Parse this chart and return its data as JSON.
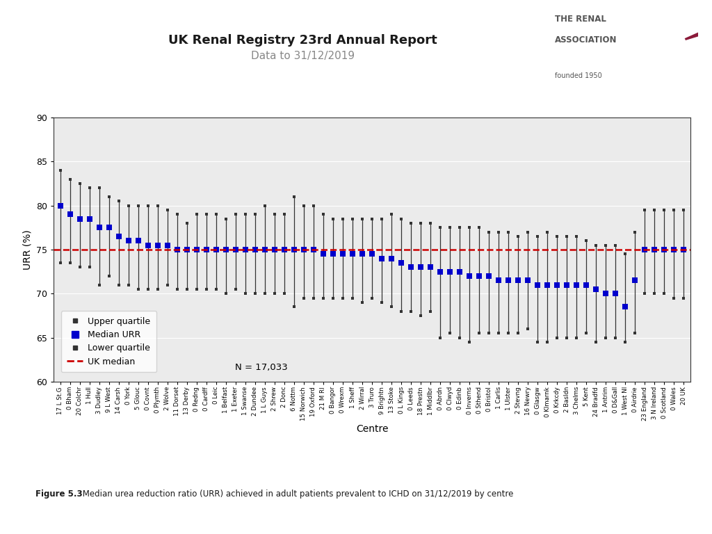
{
  "title": "UK Renal Registry 23rd Annual Report",
  "subtitle": "Data to 31/12/2019",
  "xlabel": "Centre",
  "ylabel": "URR (%)",
  "uk_median": 75.0,
  "n_label": "N = 17,033",
  "ylim": [
    60,
    90
  ],
  "yticks": [
    60,
    65,
    70,
    75,
    80,
    85,
    90
  ],
  "figure_caption": "Figure 5.3 Median urea reduction ratio (URR) achieved in adult patients prevalent to ICHD on 31/12/2019 by centre",
  "background_color": "#ebebeb",
  "centres": [
    "17 L St.G",
    "0 Bham",
    "20 Colchr",
    "1 Hull",
    "3 Dudley",
    "9 L West",
    "14 Carsh",
    "0 York",
    "5 Glouc",
    "0 Covnt",
    "0 Plymth",
    "2 Wolve",
    "11 Dorset",
    "13 Derby",
    "0 Redng",
    "0 Cardff",
    "0 Leic",
    "1 Belfast",
    "1 Exeter",
    "1 Swanse",
    "2 Dundee",
    "1 L Guys",
    "2 Shrew",
    "2 Donc",
    "6 Nottm",
    "15 Norwich",
    "19 Oxford",
    "21 M RI",
    "0 Bangor",
    "0 Wrexm",
    "1 Sheff",
    "2 Wirral",
    "3 Truro",
    "9 Brightn",
    "13 Stoke",
    "0 L Kings",
    "0 Leeds",
    "18 Prestn",
    "1 Middlbr",
    "0 Abrdn",
    "0 Clwyd",
    "0 Edinb",
    "0 Inverns",
    "0 Sthend",
    "0 Bristol",
    "1 Carlis",
    "1 Ulster",
    "2 Stevng",
    "16 Newry",
    "0 Glasgw",
    "0 Klmarnk",
    "0 Krkcdy",
    "2 Basldn",
    "3 Chelms",
    "5 Kent",
    "24 Bradfd",
    "1 Antrim",
    "0 D&Gall",
    "1 West NI",
    "0 Airdrie",
    "23 England",
    "3 N Ireland",
    "0 Scotland",
    "0 Wales",
    "20 UK"
  ],
  "medians": [
    80.0,
    79.0,
    78.5,
    78.5,
    77.5,
    77.5,
    76.5,
    76.0,
    76.0,
    75.5,
    75.5,
    75.5,
    75.0,
    75.0,
    75.0,
    75.0,
    75.0,
    75.0,
    75.0,
    75.0,
    75.0,
    75.0,
    75.0,
    75.0,
    75.0,
    75.0,
    75.0,
    74.5,
    74.5,
    74.5,
    74.5,
    74.5,
    74.5,
    74.0,
    74.0,
    73.5,
    73.0,
    73.0,
    73.0,
    72.5,
    72.5,
    72.5,
    72.0,
    72.0,
    72.0,
    71.5,
    71.5,
    71.5,
    71.5,
    71.0,
    71.0,
    71.0,
    71.0,
    71.0,
    71.0,
    70.5,
    70.0,
    70.0,
    68.5,
    71.5,
    75.0,
    75.0,
    75.0,
    75.0,
    75.0
  ],
  "upper_quartiles": [
    84.0,
    83.0,
    82.5,
    82.0,
    82.0,
    81.0,
    80.5,
    80.0,
    80.0,
    80.0,
    80.0,
    79.5,
    79.0,
    78.0,
    79.0,
    79.0,
    79.0,
    78.5,
    79.0,
    79.0,
    79.0,
    80.0,
    79.0,
    79.0,
    81.0,
    80.0,
    80.0,
    79.0,
    78.5,
    78.5,
    78.5,
    78.5,
    78.5,
    78.5,
    79.0,
    78.5,
    78.0,
    78.0,
    78.0,
    77.5,
    77.5,
    77.5,
    77.5,
    77.5,
    77.0,
    77.0,
    77.0,
    76.5,
    77.0,
    76.5,
    77.0,
    76.5,
    76.5,
    76.5,
    76.0,
    75.5,
    75.5,
    75.5,
    74.5,
    77.0,
    79.5,
    79.5,
    79.5,
    79.5,
    79.5
  ],
  "lower_quartiles": [
    73.5,
    73.5,
    73.0,
    73.0,
    71.0,
    72.0,
    71.0,
    71.0,
    70.5,
    70.5,
    70.5,
    71.0,
    70.5,
    70.5,
    70.5,
    70.5,
    70.5,
    70.0,
    70.5,
    70.0,
    70.0,
    70.0,
    70.0,
    70.0,
    68.5,
    69.5,
    69.5,
    69.5,
    69.5,
    69.5,
    69.5,
    69.0,
    69.5,
    69.0,
    68.5,
    68.0,
    68.0,
    67.5,
    68.0,
    65.0,
    65.5,
    65.0,
    64.5,
    65.5,
    65.5,
    65.5,
    65.5,
    65.5,
    66.0,
    64.5,
    64.5,
    65.0,
    65.0,
    65.0,
    65.5,
    64.5,
    65.0,
    65.0,
    64.5,
    65.5,
    70.0,
    70.0,
    70.0,
    69.5,
    69.5
  ],
  "median_color": "#0000cc",
  "line_color": "#333333",
  "uk_median_color": "#cc0000",
  "tick_label_fontsize": 6.2,
  "axis_label_fontsize": 10,
  "ytick_fontsize": 9,
  "legend_fontsize": 9
}
